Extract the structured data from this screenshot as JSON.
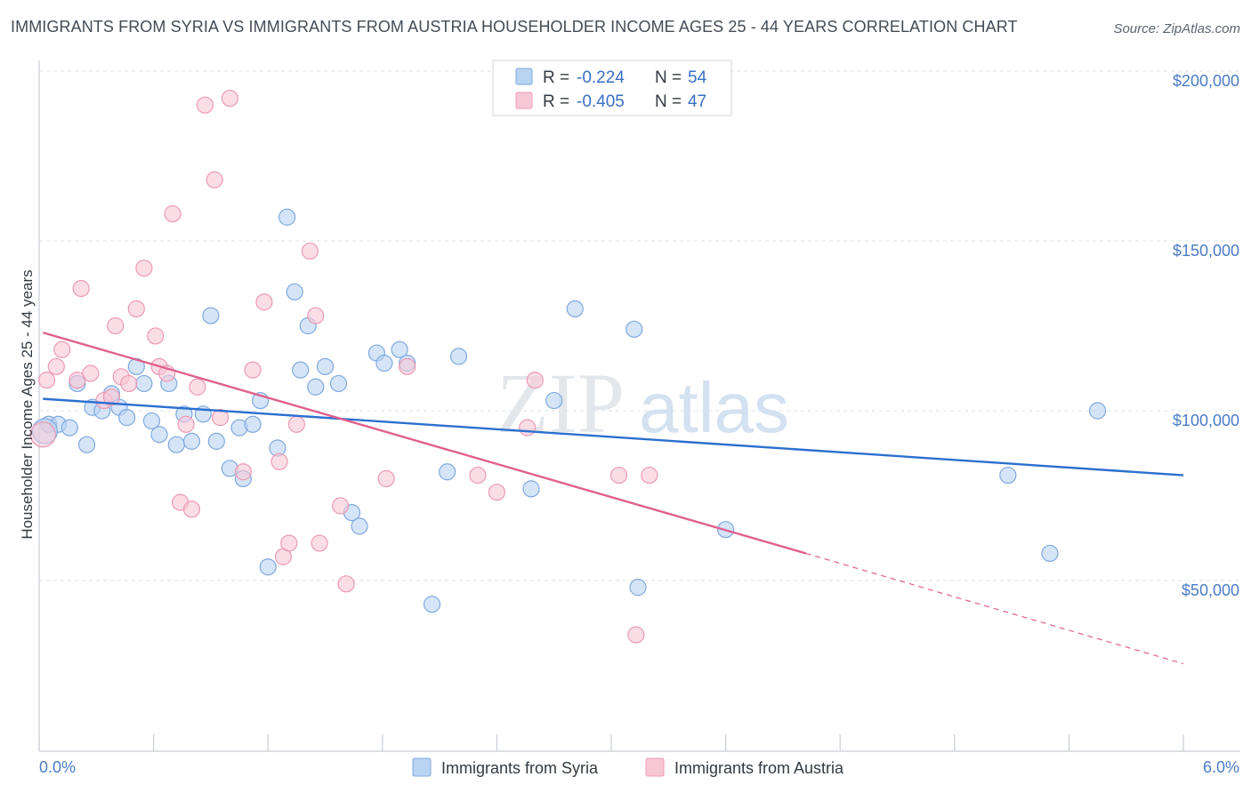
{
  "title": "IMMIGRANTS FROM SYRIA VS IMMIGRANTS FROM AUSTRIA HOUSEHOLDER INCOME AGES 25 - 44 YEARS CORRELATION CHART",
  "source": "Source: ZipAtlas.com",
  "watermark": {
    "zip": "ZIP",
    "atlas": "atlas"
  },
  "colors": {
    "syria_fill": "#b9d3f2",
    "syria_stroke": "#7fa9de",
    "syria_line": "#2c6fce",
    "austria_fill": "#f8c7d6",
    "austria_stroke": "#eb9ab5",
    "austria_line": "#e0608e",
    "tick_label": "#4a7cc4",
    "grid": "#dde1e6"
  },
  "stats": [
    {
      "r_label": "R = ",
      "r_value": "-0.224",
      "n_label": "N = ",
      "n_value": "54"
    },
    {
      "r_label": "R = ",
      "r_value": "-0.405",
      "n_label": "N = ",
      "n_value": "47"
    }
  ],
  "chart_data": {
    "type": "scatter",
    "title": "IMMIGRANTS FROM SYRIA VS IMMIGRANTS FROM AUSTRIA HOUSEHOLDER INCOME AGES 25 - 44 YEARS CORRELATION CHART",
    "xlabel": "",
    "ylabel": "Householder Income Ages 25 - 44 years",
    "xlim": [
      0,
      6
    ],
    "ylim": [
      0,
      210000
    ],
    "x_tick_labels": [
      "0.0%",
      "6.0%"
    ],
    "y_ticks": [
      50000,
      100000,
      150000,
      200000
    ],
    "y_tick_labels": [
      "$50,000",
      "$100,000",
      "$150,000",
      "$200,000"
    ],
    "legend_position": "top-center",
    "series": [
      {
        "name": "Immigrants from Syria",
        "points": [
          [
            0.05,
            96000
          ],
          [
            0.1,
            96000
          ],
          [
            0.16,
            95000
          ],
          [
            0.2,
            108000
          ],
          [
            0.25,
            90000
          ],
          [
            0.28,
            101000
          ],
          [
            0.33,
            100000
          ],
          [
            0.38,
            105000
          ],
          [
            0.42,
            101000
          ],
          [
            0.46,
            98000
          ],
          [
            0.51,
            113000
          ],
          [
            0.55,
            108000
          ],
          [
            0.59,
            97000
          ],
          [
            0.63,
            93000
          ],
          [
            0.68,
            108000
          ],
          [
            0.72,
            90000
          ],
          [
            0.76,
            99000
          ],
          [
            0.8,
            91000
          ],
          [
            0.86,
            99000
          ],
          [
            0.9,
            128000
          ],
          [
            0.93,
            91000
          ],
          [
            1.0,
            83000
          ],
          [
            1.05,
            95000
          ],
          [
            1.07,
            80000
          ],
          [
            1.12,
            96000
          ],
          [
            1.16,
            103000
          ],
          [
            1.2,
            54000
          ],
          [
            1.25,
            89000
          ],
          [
            1.3,
            157000
          ],
          [
            1.34,
            135000
          ],
          [
            1.37,
            112000
          ],
          [
            1.41,
            125000
          ],
          [
            1.45,
            107000
          ],
          [
            1.5,
            113000
          ],
          [
            1.57,
            108000
          ],
          [
            1.64,
            70000
          ],
          [
            1.68,
            66000
          ],
          [
            1.77,
            117000
          ],
          [
            1.81,
            114000
          ],
          [
            1.89,
            118000
          ],
          [
            1.93,
            114000
          ],
          [
            2.06,
            43000
          ],
          [
            2.14,
            82000
          ],
          [
            2.2,
            116000
          ],
          [
            2.58,
            77000
          ],
          [
            2.7,
            103000
          ],
          [
            2.81,
            130000
          ],
          [
            3.12,
            124000
          ],
          [
            3.14,
            48000
          ],
          [
            3.6,
            65000
          ],
          [
            5.08,
            81000
          ],
          [
            5.3,
            58000
          ],
          [
            5.55,
            100000
          ],
          [
            0.03,
            94000
          ]
        ]
      },
      {
        "name": "Immigrants from Austria",
        "points": [
          [
            0.02,
            93000
          ],
          [
            0.04,
            109000
          ],
          [
            0.09,
            113000
          ],
          [
            0.12,
            118000
          ],
          [
            0.2,
            109000
          ],
          [
            0.22,
            136000
          ],
          [
            0.27,
            111000
          ],
          [
            0.34,
            103000
          ],
          [
            0.38,
            104000
          ],
          [
            0.4,
            125000
          ],
          [
            0.43,
            110000
          ],
          [
            0.47,
            108000
          ],
          [
            0.51,
            130000
          ],
          [
            0.55,
            142000
          ],
          [
            0.61,
            122000
          ],
          [
            0.63,
            113000
          ],
          [
            0.67,
            111000
          ],
          [
            0.7,
            158000
          ],
          [
            0.74,
            73000
          ],
          [
            0.77,
            96000
          ],
          [
            0.8,
            71000
          ],
          [
            0.83,
            107000
          ],
          [
            0.87,
            190000
          ],
          [
            0.92,
            168000
          ],
          [
            0.95,
            98000
          ],
          [
            1.0,
            192000
          ],
          [
            1.07,
            82000
          ],
          [
            1.12,
            112000
          ],
          [
            1.18,
            132000
          ],
          [
            1.26,
            85000
          ],
          [
            1.28,
            57000
          ],
          [
            1.31,
            61000
          ],
          [
            1.35,
            96000
          ],
          [
            1.42,
            147000
          ],
          [
            1.45,
            128000
          ],
          [
            1.47,
            61000
          ],
          [
            1.58,
            72000
          ],
          [
            1.61,
            49000
          ],
          [
            1.82,
            80000
          ],
          [
            1.93,
            113000
          ],
          [
            2.3,
            81000
          ],
          [
            2.4,
            76000
          ],
          [
            2.56,
            95000
          ],
          [
            2.6,
            109000
          ],
          [
            3.04,
            81000
          ],
          [
            3.13,
            34000
          ],
          [
            3.2,
            81000
          ]
        ]
      }
    ],
    "trend_lines": [
      {
        "series": "Immigrants from Syria",
        "x": [
          0.02,
          6.0
        ],
        "y": [
          103500,
          81000
        ],
        "style": "solid"
      },
      {
        "series": "Immigrants from Austria",
        "x": [
          0.02,
          4.02
        ],
        "y": [
          123000,
          58000
        ],
        "style": "solid"
      },
      {
        "series": "Immigrants from Austria",
        "x": [
          4.02,
          6.0
        ],
        "y": [
          58000,
          25500
        ],
        "style": "dashed"
      }
    ]
  }
}
